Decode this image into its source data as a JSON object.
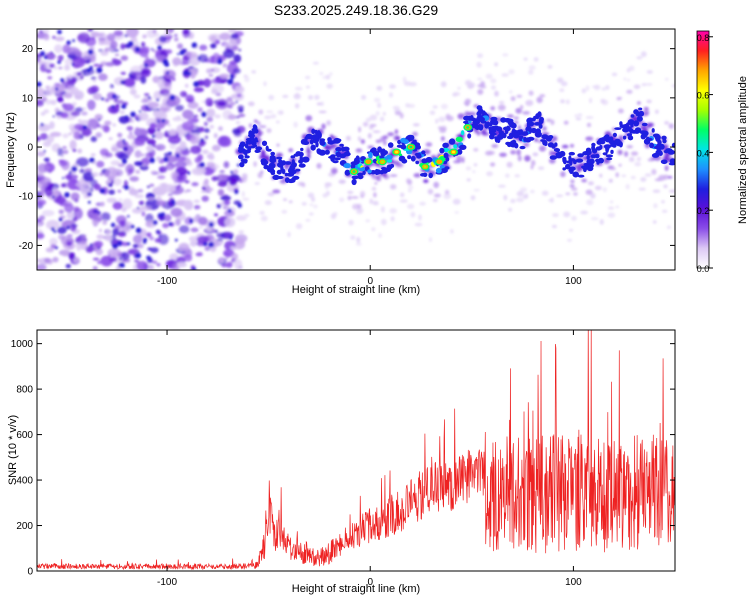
{
  "chart_data": [
    {
      "type": "heatmap",
      "title": "S233.2025.249.18.36.G29",
      "xlabel": "Height of straight line (km)",
      "ylabel": "Frequency (Hz)",
      "xlim": [
        -164,
        150
      ],
      "ylim": [
        -25,
        24
      ],
      "xticks": [
        -100,
        0,
        100
      ],
      "yticks": [
        -20,
        -10,
        0,
        10,
        20
      ],
      "colorbar": {
        "label": "Normalized spectral amplitude",
        "range": [
          0.0,
          0.82
        ],
        "ticks": [
          "0.0",
          "0.2",
          "0.4",
          "0.6",
          "0.8"
        ],
        "tick_values": [
          0.0,
          0.2,
          0.4,
          0.6,
          0.8
        ],
        "colormap": [
          "#ffffff",
          "#dcc8f5",
          "#8a4de8",
          "#5a10d8",
          "#1f1fe0",
          "#1e90ff",
          "#00e5e5",
          "#00ff66",
          "#a6ff00",
          "#ffff00",
          "#ffa500",
          "#ff2020",
          "#ff00aa"
        ]
      },
      "noise_region": {
        "x": [
          -164,
          -63
        ],
        "y": [
          -25,
          24
        ]
      },
      "ridge": {
        "x": [
          -64,
          -57,
          -50,
          -43,
          -36,
          -29,
          -22,
          -15,
          -8,
          -1,
          6,
          13,
          20,
          27,
          34,
          41,
          48,
          55,
          62,
          69,
          76,
          83,
          90,
          97,
          104,
          111,
          118,
          125,
          132,
          139,
          146,
          150
        ],
        "freq": [
          -2,
          2,
          -3,
          -5,
          -4,
          2,
          0,
          -1,
          -5,
          -3,
          -3,
          -1,
          0,
          -4,
          -3,
          -1,
          4,
          6,
          3,
          3,
          2,
          5,
          -1,
          -3,
          -4,
          -1,
          0,
          3,
          6,
          1,
          -1,
          -2
        ],
        "amplitude": [
          0.25,
          0.3,
          0.3,
          0.3,
          0.25,
          0.3,
          0.35,
          0.4,
          0.45,
          0.7,
          0.55,
          0.6,
          0.5,
          0.55,
          0.65,
          0.6,
          0.45,
          0.4,
          0.35,
          0.35,
          0.4,
          0.3,
          0.3,
          0.35,
          0.3,
          0.35,
          0.3,
          0.35,
          0.3,
          0.4,
          0.35,
          0.3
        ]
      }
    },
    {
      "type": "line",
      "xlabel": "Height of straight line (km)",
      "ylabel": "SNR (10 * v/v)",
      "xlim": [
        -164,
        150
      ],
      "ylim": [
        0,
        1060
      ],
      "xticks": [
        -100,
        0,
        100
      ],
      "yticks": [
        0,
        200,
        400,
        600,
        800,
        1000
      ],
      "color": "#ee2222",
      "envelope": {
        "x": [
          -164,
          -100,
          -64,
          -55,
          -51,
          -50,
          -49,
          -45,
          -40,
          -35,
          -30,
          -25,
          -20,
          -10,
          0,
          10,
          20,
          30,
          40,
          50,
          56,
          57,
          70,
          80,
          90,
          100,
          110,
          120,
          130,
          140,
          150
        ],
        "mean": [
          20,
          20,
          20,
          30,
          150,
          300,
          200,
          150,
          110,
          90,
          60,
          60,
          80,
          150,
          200,
          250,
          300,
          360,
          380,
          420,
          430,
          320,
          350,
          330,
          340,
          360,
          340,
          330,
          340,
          360,
          350
        ],
        "amplitude": [
          12,
          12,
          12,
          30,
          80,
          150,
          120,
          80,
          60,
          50,
          40,
          40,
          50,
          60,
          80,
          100,
          110,
          120,
          120,
          120,
          120,
          250,
          260,
          270,
          270,
          270,
          260,
          260,
          260,
          250,
          240
        ]
      }
    }
  ]
}
